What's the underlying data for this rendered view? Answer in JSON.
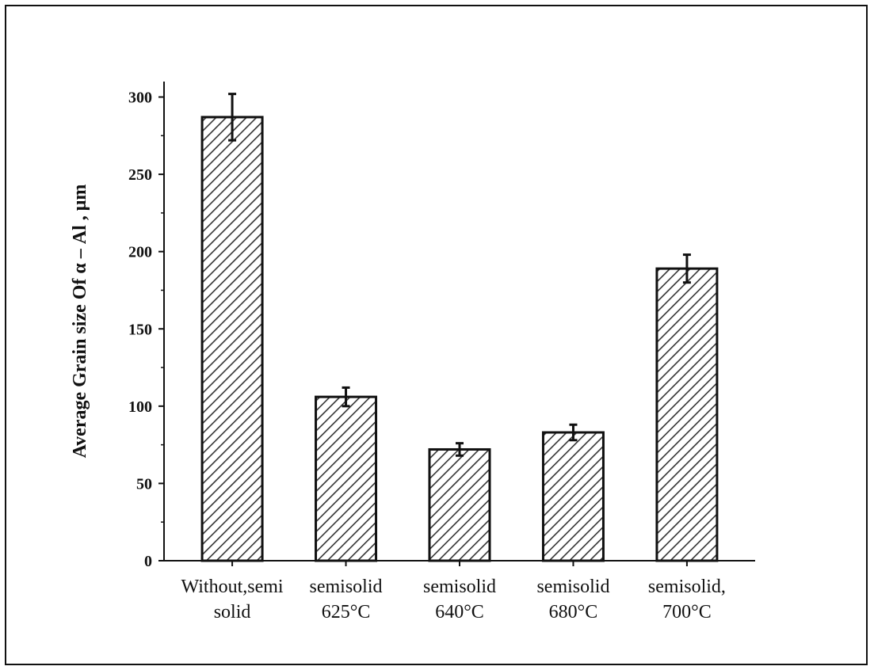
{
  "chart_data": {
    "type": "bar",
    "categories": [
      [
        "Without,semi",
        "solid"
      ],
      [
        "semisolid",
        "625°C"
      ],
      [
        "semisolid",
        "640°C"
      ],
      [
        "semisolid",
        "680°C"
      ],
      [
        "semisolid,",
        "700°C"
      ]
    ],
    "values": [
      287,
      106,
      72,
      83,
      189
    ],
    "errors": [
      15,
      6,
      4,
      5,
      9
    ],
    "ylabel": "Average Grain size Of α – Al , μm",
    "xlabel": "",
    "title": "",
    "ylim": [
      0,
      310
    ],
    "yticks": [
      0,
      50,
      100,
      150,
      200,
      250,
      300
    ],
    "grid": false,
    "legend": "none",
    "bar_fill": "hatched",
    "colors": {
      "bar_stroke": "#111111",
      "hatch": "#333333",
      "axis": "#111111"
    }
  }
}
